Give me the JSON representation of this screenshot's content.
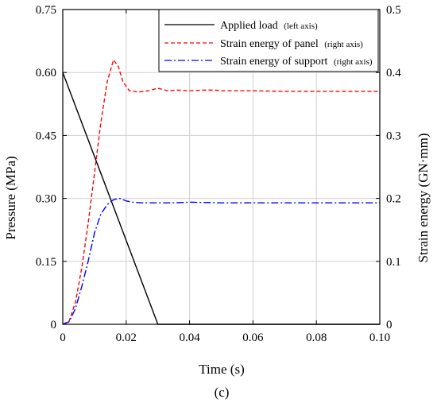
{
  "chart_data": {
    "type": "line",
    "xlabel": "Time (s)",
    "ylabel_left": "Pressure (MPa)",
    "ylabel_right": "Strain energy (GN·mm)",
    "xlim": [
      0,
      0.1
    ],
    "ylim_left": [
      0,
      0.75
    ],
    "ylim_right": [
      0,
      0.5
    ],
    "x_ticks": [
      "0",
      "0.02",
      "0.04",
      "0.06",
      "0.08",
      "0.10"
    ],
    "x_tick_values": [
      0,
      0.02,
      0.04,
      0.06,
      0.08,
      0.1
    ],
    "y_left_ticks": [
      "0",
      "0.15",
      "0.30",
      "0.45",
      "0.60",
      "0.75"
    ],
    "y_left_tick_values": [
      0,
      0.15,
      0.3,
      0.45,
      0.6,
      0.75
    ],
    "y_right_ticks": [
      "0",
      "0.1",
      "0.2",
      "0.3",
      "0.4",
      "0.5"
    ],
    "y_right_tick_values": [
      0,
      0.1,
      0.2,
      0.3,
      0.4,
      0.5
    ],
    "grid": true,
    "legend_position": "top-right",
    "panel_label": "(c)",
    "series": [
      {
        "name": "Applied load",
        "note": "(left axis)",
        "axis": "left",
        "color": "#000000",
        "style": "solid",
        "points": [
          [
            0,
            0.6
          ],
          [
            0.03,
            0
          ],
          [
            0.1,
            0
          ]
        ]
      },
      {
        "name": "Strain energy of panel",
        "note": "(right axis)",
        "axis": "right",
        "color": "#ff0000",
        "style": "dashed",
        "points": [
          [
            0,
            0
          ],
          [
            0.002,
            0.005
          ],
          [
            0.004,
            0.035
          ],
          [
            0.006,
            0.09
          ],
          [
            0.008,
            0.16
          ],
          [
            0.01,
            0.24
          ],
          [
            0.012,
            0.32
          ],
          [
            0.014,
            0.385
          ],
          [
            0.016,
            0.42
          ],
          [
            0.0175,
            0.41
          ],
          [
            0.019,
            0.385
          ],
          [
            0.021,
            0.371
          ],
          [
            0.024,
            0.369
          ],
          [
            0.027,
            0.371
          ],
          [
            0.03,
            0.375
          ],
          [
            0.033,
            0.371
          ],
          [
            0.036,
            0.372
          ],
          [
            0.04,
            0.371
          ],
          [
            0.044,
            0.372
          ],
          [
            0.048,
            0.372
          ],
          [
            0.05,
            0.371
          ],
          [
            0.06,
            0.371
          ],
          [
            0.07,
            0.37
          ],
          [
            0.08,
            0.37
          ],
          [
            0.09,
            0.37
          ],
          [
            0.1,
            0.37
          ]
        ]
      },
      {
        "name": "Strain energy of support",
        "note": "(right axis)",
        "axis": "right",
        "color": "#0000ff",
        "style": "dashdot",
        "points": [
          [
            0,
            0
          ],
          [
            0.002,
            0.004
          ],
          [
            0.004,
            0.025
          ],
          [
            0.006,
            0.06
          ],
          [
            0.008,
            0.1
          ],
          [
            0.01,
            0.145
          ],
          [
            0.012,
            0.175
          ],
          [
            0.014,
            0.19
          ],
          [
            0.016,
            0.198
          ],
          [
            0.018,
            0.2
          ],
          [
            0.02,
            0.196
          ],
          [
            0.022,
            0.194
          ],
          [
            0.025,
            0.193
          ],
          [
            0.03,
            0.193
          ],
          [
            0.035,
            0.193
          ],
          [
            0.04,
            0.194
          ],
          [
            0.05,
            0.193
          ],
          [
            0.06,
            0.193
          ],
          [
            0.07,
            0.193
          ],
          [
            0.08,
            0.193
          ],
          [
            0.09,
            0.193
          ],
          [
            0.1,
            0.193
          ]
        ]
      }
    ]
  }
}
